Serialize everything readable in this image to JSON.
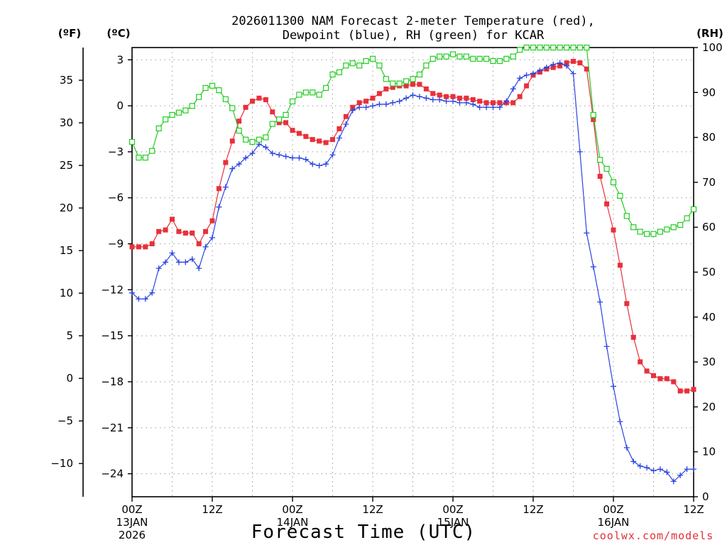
{
  "chart_data": {
    "type": "line",
    "title_line1": "2026011300 NAM Forecast 2-meter Temperature (red),",
    "title_line2": "Dewpoint (blue), RH (green) for KCAR",
    "xlabel": "Forecast Time (UTC)",
    "credit": "coolwx.com/models",
    "units": {
      "fahrenheit": "(ºF)",
      "celsius": "(ºC)",
      "rh": "(RH)"
    },
    "x_range_hours": [
      0,
      84
    ],
    "celsius_range": [
      -25.5,
      3.8
    ],
    "rh_range": [
      0,
      100
    ],
    "celsius_ticks": [
      "3",
      "0",
      "−3",
      "−6",
      "−9",
      "−12",
      "−15",
      "−18",
      "−21",
      "−24"
    ],
    "celsius_tick_values": [
      3,
      0,
      -3,
      -6,
      -9,
      -12,
      -15,
      -18,
      -21,
      -24
    ],
    "fahrenheit_ticks": [
      "35",
      "30",
      "25",
      "20",
      "15",
      "10",
      "5",
      "0",
      "−5",
      "−10"
    ],
    "fahrenheit_tick_values": [
      35,
      30,
      25,
      20,
      15,
      10,
      5,
      0,
      -5,
      -10
    ],
    "rh_ticks": [
      "100",
      "90",
      "80",
      "70",
      "60",
      "50",
      "40",
      "30",
      "20",
      "10",
      "0"
    ],
    "rh_tick_values": [
      100,
      90,
      80,
      70,
      60,
      50,
      40,
      30,
      20,
      10,
      0
    ],
    "x_ticks": [
      {
        "hour": 0,
        "label": "00Z",
        "sub1": "13JAN",
        "sub2": "2026"
      },
      {
        "hour": 12,
        "label": "12Z",
        "sub1": "",
        "sub2": ""
      },
      {
        "hour": 24,
        "label": "00Z",
        "sub1": "14JAN",
        "sub2": ""
      },
      {
        "hour": 36,
        "label": "12Z",
        "sub1": "",
        "sub2": ""
      },
      {
        "hour": 48,
        "label": "00Z",
        "sub1": "15JAN",
        "sub2": ""
      },
      {
        "hour": 60,
        "label": "12Z",
        "sub1": "",
        "sub2": ""
      },
      {
        "hour": 72,
        "label": "00Z",
        "sub1": "16JAN",
        "sub2": ""
      },
      {
        "hour": 84,
        "label": "12Z",
        "sub1": "",
        "sub2": ""
      }
    ],
    "series": [
      {
        "name": "2-meter Temperature",
        "axis": "celsius",
        "color": "#e8303a",
        "marker": "square-filled",
        "hours": [
          0,
          1,
          2,
          3,
          4,
          5,
          6,
          7,
          8,
          9,
          10,
          11,
          12,
          13,
          14,
          15,
          16,
          17,
          18,
          19,
          20,
          21,
          22,
          23,
          24,
          25,
          26,
          27,
          28,
          29,
          30,
          31,
          32,
          33,
          34,
          35,
          36,
          37,
          38,
          39,
          40,
          41,
          42,
          43,
          44,
          45,
          46,
          47,
          48,
          49,
          50,
          51,
          52,
          53,
          54,
          55,
          56,
          57,
          58,
          59,
          60,
          61,
          62,
          63,
          64,
          65,
          66,
          67,
          68,
          69,
          70,
          71,
          72,
          73,
          74,
          75,
          76,
          77,
          78,
          79,
          80,
          81,
          82,
          83,
          84
        ],
        "values": [
          -9.2,
          -9.2,
          -9.2,
          -9.0,
          -8.2,
          -8.1,
          -7.4,
          -8.2,
          -8.3,
          -8.3,
          -9.0,
          -8.2,
          -7.5,
          -5.4,
          -3.7,
          -2.3,
          -1.0,
          -0.1,
          0.3,
          0.5,
          0.4,
          -0.4,
          -1.1,
          -1.1,
          -1.6,
          -1.8,
          -2.0,
          -2.2,
          -2.3,
          -2.4,
          -2.2,
          -1.5,
          -0.7,
          -0.1,
          0.2,
          0.3,
          0.5,
          0.8,
          1.1,
          1.2,
          1.3,
          1.3,
          1.4,
          1.4,
          1.1,
          0.8,
          0.7,
          0.6,
          0.6,
          0.5,
          0.5,
          0.4,
          0.3,
          0.2,
          0.2,
          0.2,
          0.2,
          0.2,
          0.6,
          1.3,
          2.0,
          2.2,
          2.4,
          2.5,
          2.6,
          2.8,
          2.9,
          2.8,
          2.4,
          -0.9,
          -4.6,
          -6.4,
          -8.1,
          -10.4,
          -12.9,
          -15.1,
          -16.7,
          -17.3,
          -17.6,
          -17.8,
          -17.8,
          -18.0,
          -18.6,
          -18.6,
          -18.5
        ]
      },
      {
        "name": "Dewpoint",
        "axis": "celsius",
        "color": "#2a44e0",
        "marker": "plus",
        "hours": [
          0,
          1,
          2,
          3,
          4,
          5,
          6,
          7,
          8,
          9,
          10,
          11,
          12,
          13,
          14,
          15,
          16,
          17,
          18,
          19,
          20,
          21,
          22,
          23,
          24,
          25,
          26,
          27,
          28,
          29,
          30,
          31,
          32,
          33,
          34,
          35,
          36,
          37,
          38,
          39,
          40,
          41,
          42,
          43,
          44,
          45,
          46,
          47,
          48,
          49,
          50,
          51,
          52,
          53,
          54,
          55,
          56,
          57,
          58,
          59,
          60,
          61,
          62,
          63,
          64,
          65,
          66,
          67,
          68,
          69,
          70,
          71,
          72,
          73,
          74,
          75,
          76,
          77,
          78,
          79,
          80,
          81,
          82,
          83,
          84
        ],
        "values": [
          -12.2,
          -12.6,
          -12.6,
          -12.2,
          -10.6,
          -10.2,
          -9.6,
          -10.2,
          -10.2,
          -10.0,
          -10.6,
          -9.2,
          -8.6,
          -6.6,
          -5.3,
          -4.1,
          -3.8,
          -3.4,
          -3.1,
          -2.5,
          -2.7,
          -3.1,
          -3.2,
          -3.3,
          -3.4,
          -3.4,
          -3.5,
          -3.8,
          -3.9,
          -3.8,
          -3.2,
          -2.1,
          -1.2,
          -0.3,
          -0.1,
          -0.1,
          0.0,
          0.1,
          0.1,
          0.2,
          0.3,
          0.5,
          0.7,
          0.6,
          0.5,
          0.4,
          0.4,
          0.3,
          0.3,
          0.2,
          0.2,
          0.1,
          -0.1,
          -0.1,
          -0.1,
          -0.1,
          0.3,
          1.1,
          1.8,
          2.0,
          2.1,
          2.3,
          2.5,
          2.7,
          2.8,
          2.6,
          2.1,
          -3.0,
          -8.3,
          -10.5,
          -12.8,
          -15.7,
          -18.3,
          -20.6,
          -22.3,
          -23.2,
          -23.5,
          -23.6,
          -23.8,
          -23.7,
          -23.9,
          -24.5,
          -24.1,
          -23.7,
          -23.7
        ]
      },
      {
        "name": "RH",
        "axis": "rh",
        "color": "#22cc22",
        "marker": "square-open",
        "hours": [
          0,
          1,
          2,
          3,
          4,
          5,
          6,
          7,
          8,
          9,
          10,
          11,
          12,
          13,
          14,
          15,
          16,
          17,
          18,
          19,
          20,
          21,
          22,
          23,
          24,
          25,
          26,
          27,
          28,
          29,
          30,
          31,
          32,
          33,
          34,
          35,
          36,
          37,
          38,
          39,
          40,
          41,
          42,
          43,
          44,
          45,
          46,
          47,
          48,
          49,
          50,
          51,
          52,
          53,
          54,
          55,
          56,
          57,
          58,
          59,
          60,
          61,
          62,
          63,
          64,
          65,
          66,
          67,
          68,
          69,
          70,
          71,
          72,
          73,
          74,
          75,
          76,
          77,
          78,
          79,
          80,
          81,
          82,
          83,
          84
        ],
        "values": [
          79,
          75.5,
          75.5,
          77,
          82,
          84,
          85,
          85.5,
          86,
          87,
          89,
          91,
          91.5,
          90.5,
          88.5,
          86.5,
          81.5,
          79.5,
          79,
          79.5,
          80,
          83,
          84,
          85,
          88,
          89.5,
          90,
          90,
          89.5,
          91,
          94,
          94.5,
          96,
          96.5,
          96,
          97,
          97.5,
          96,
          93,
          92,
          92,
          92.5,
          93,
          94,
          96,
          97.5,
          98,
          98,
          98.5,
          98,
          98,
          97.5,
          97.5,
          97.5,
          97,
          97,
          97.5,
          98,
          99.5,
          100,
          100,
          100,
          100,
          100,
          100,
          100,
          100,
          100,
          100,
          85,
          75,
          73,
          70,
          67,
          62.5,
          60,
          59,
          58.5,
          58.5,
          59,
          59.5,
          60,
          60.5,
          62,
          64
        ]
      }
    ]
  }
}
